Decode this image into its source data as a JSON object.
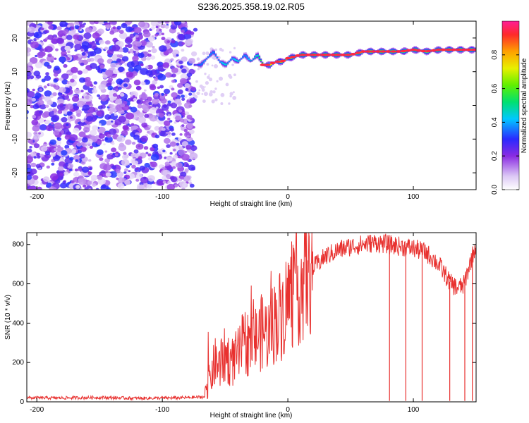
{
  "title": "S236.2025.358.19.02.R05",
  "chart_data": [
    {
      "type": "heatmap",
      "xlabel": "Height of straight line (km)",
      "ylabel": "Frequency (Hz)",
      "xlim": [
        -208,
        150
      ],
      "ylim": [
        -25,
        25
      ],
      "xticks": [
        -200,
        -100,
        0,
        100
      ],
      "yticks": [
        20,
        10,
        0,
        -10,
        -20
      ],
      "colorbar": {
        "label": "Normalized spectral amplitude",
        "range": [
          0,
          1
        ],
        "ticks": [
          0.0,
          0.2,
          0.4,
          0.6,
          0.8
        ]
      },
      "noise_region": {
        "x_range": [
          -208,
          -75
        ],
        "level": 0.15
      },
      "ridge": {
        "x": [
          -75,
          -70,
          -65,
          -60,
          -55,
          -50,
          -45,
          -40,
          -35,
          -30,
          -25,
          -20,
          -15,
          -10,
          -5,
          0,
          10,
          20,
          30,
          40,
          50,
          60,
          70,
          80,
          90,
          100,
          110,
          120,
          130,
          140,
          150
        ],
        "freq": [
          12,
          12,
          14,
          16,
          13,
          12,
          14,
          13,
          15,
          13,
          15,
          12,
          12,
          13,
          13,
          14,
          15,
          15,
          15,
          15,
          15,
          16,
          16,
          16,
          16,
          16.5,
          16,
          16.5,
          16.5,
          16.5,
          16.5
        ],
        "amplitude": [
          0.3,
          0.35,
          0.4,
          0.35,
          0.4,
          0.45,
          0.4,
          0.45,
          0.35,
          0.45,
          0.45,
          0.65,
          0.75,
          0.8,
          0.85,
          0.85,
          0.9,
          0.9,
          0.9,
          0.9,
          0.85,
          0.85,
          0.9,
          0.9,
          0.85,
          0.9,
          0.85,
          0.9,
          0.9,
          0.9,
          0.85
        ]
      }
    },
    {
      "type": "line",
      "xlabel": "Height of straight line (km)",
      "ylabel": "SNR (10 * v/v)",
      "xlim": [
        -208,
        150
      ],
      "ylim": [
        0,
        860
      ],
      "xticks": [
        -200,
        -100,
        0,
        100
      ],
      "yticks": [
        0,
        200,
        400,
        600,
        800
      ],
      "color": "#e8312f",
      "series": [
        {
          "x": [
            -208,
            -180,
            -150,
            -120,
            -90,
            -66,
            -62,
            -58,
            -54,
            -50,
            -45,
            -40,
            -35,
            -30,
            -25,
            -20,
            -15,
            -10,
            -5,
            0,
            5,
            10,
            15,
            20,
            25,
            30,
            40,
            50,
            60,
            70,
            80,
            90,
            100,
            110,
            120,
            125,
            130,
            135,
            140,
            145,
            150
          ],
          "y": [
            20,
            20,
            22,
            18,
            20,
            25,
            120,
            200,
            180,
            240,
            200,
            230,
            300,
            300,
            320,
            360,
            350,
            420,
            450,
            520,
            560,
            590,
            640,
            680,
            710,
            740,
            770,
            790,
            800,
            810,
            800,
            790,
            780,
            760,
            700,
            650,
            600,
            580,
            590,
            700,
            800
          ],
          "dips": [
            {
              "x": 81,
              "y": 5
            },
            {
              "x": 94,
              "y": 5
            },
            {
              "x": 107,
              "y": 5
            },
            {
              "x": 129,
              "y": 5
            },
            {
              "x": 141,
              "y": 5
            },
            {
              "x": 147,
              "y": 5
            }
          ]
        }
      ]
    }
  ]
}
